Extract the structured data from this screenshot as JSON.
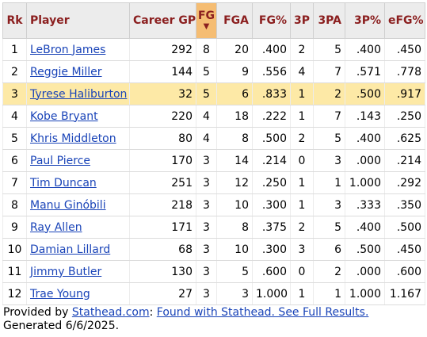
{
  "columns": [
    "Rk",
    "Player",
    "Career GP",
    "FG",
    "FGA",
    "FG%",
    "3P",
    "3PA",
    "3P%",
    "eFG%"
  ],
  "sort_indicator": "▼",
  "rows": [
    {
      "rk": "1",
      "player": "LeBron James",
      "gp": "292",
      "fg": "8",
      "fga": "20",
      "fg_pct": ".400",
      "tp": "2",
      "tpa": "5",
      "tp_pct": ".400",
      "efg": ".450"
    },
    {
      "rk": "2",
      "player": "Reggie Miller",
      "gp": "144",
      "fg": "5",
      "fga": "9",
      "fg_pct": ".556",
      "tp": "4",
      "tpa": "7",
      "tp_pct": ".571",
      "efg": ".778"
    },
    {
      "rk": "3",
      "player": "Tyrese Haliburton",
      "gp": "32",
      "fg": "5",
      "fga": "6",
      "fg_pct": ".833",
      "tp": "1",
      "tpa": "2",
      "tp_pct": ".500",
      "efg": ".917",
      "highlight": true
    },
    {
      "rk": "4",
      "player": "Kobe Bryant",
      "gp": "220",
      "fg": "4",
      "fga": "18",
      "fg_pct": ".222",
      "tp": "1",
      "tpa": "7",
      "tp_pct": ".143",
      "efg": ".250"
    },
    {
      "rk": "5",
      "player": "Khris Middleton",
      "gp": "80",
      "fg": "4",
      "fga": "8",
      "fg_pct": ".500",
      "tp": "2",
      "tpa": "5",
      "tp_pct": ".400",
      "efg": ".625"
    },
    {
      "rk": "6",
      "player": "Paul Pierce",
      "gp": "170",
      "fg": "3",
      "fga": "14",
      "fg_pct": ".214",
      "tp": "0",
      "tpa": "3",
      "tp_pct": ".000",
      "efg": ".214"
    },
    {
      "rk": "7",
      "player": "Tim Duncan",
      "gp": "251",
      "fg": "3",
      "fga": "12",
      "fg_pct": ".250",
      "tp": "1",
      "tpa": "1",
      "tp_pct": "1.000",
      "efg": ".292"
    },
    {
      "rk": "8",
      "player": "Manu Ginóbili",
      "gp": "218",
      "fg": "3",
      "fga": "10",
      "fg_pct": ".300",
      "tp": "1",
      "tpa": "3",
      "tp_pct": ".333",
      "efg": ".350"
    },
    {
      "rk": "9",
      "player": "Ray Allen",
      "gp": "171",
      "fg": "3",
      "fga": "8",
      "fg_pct": ".375",
      "tp": "2",
      "tpa": "5",
      "tp_pct": ".400",
      "efg": ".500"
    },
    {
      "rk": "10",
      "player": "Damian Lillard",
      "gp": "68",
      "fg": "3",
      "fga": "10",
      "fg_pct": ".300",
      "tp": "3",
      "tpa": "6",
      "tp_pct": ".500",
      "efg": ".450"
    },
    {
      "rk": "11",
      "player": "Jimmy Butler",
      "gp": "130",
      "fg": "3",
      "fga": "5",
      "fg_pct": ".600",
      "tp": "0",
      "tpa": "2",
      "tp_pct": ".000",
      "efg": ".600"
    },
    {
      "rk": "12",
      "player": "Trae Young",
      "gp": "27",
      "fg": "3",
      "fga": "3",
      "fg_pct": "1.000",
      "tp": "1",
      "tpa": "1",
      "tp_pct": "1.000",
      "efg": "1.167"
    }
  ],
  "footer": {
    "provided_by": "Provided by",
    "site_link": "Stathead.com",
    "colon": ":",
    "results_link": "Found with Stathead. See Full Results.",
    "generated": "Generated 6/6/2025."
  },
  "colors": {
    "header_text": "#8b1f1f",
    "header_bg": "#ececec",
    "sorted_bg": "#f5bd73",
    "highlight_row": "#fde9a6",
    "link": "#1a44b8"
  }
}
